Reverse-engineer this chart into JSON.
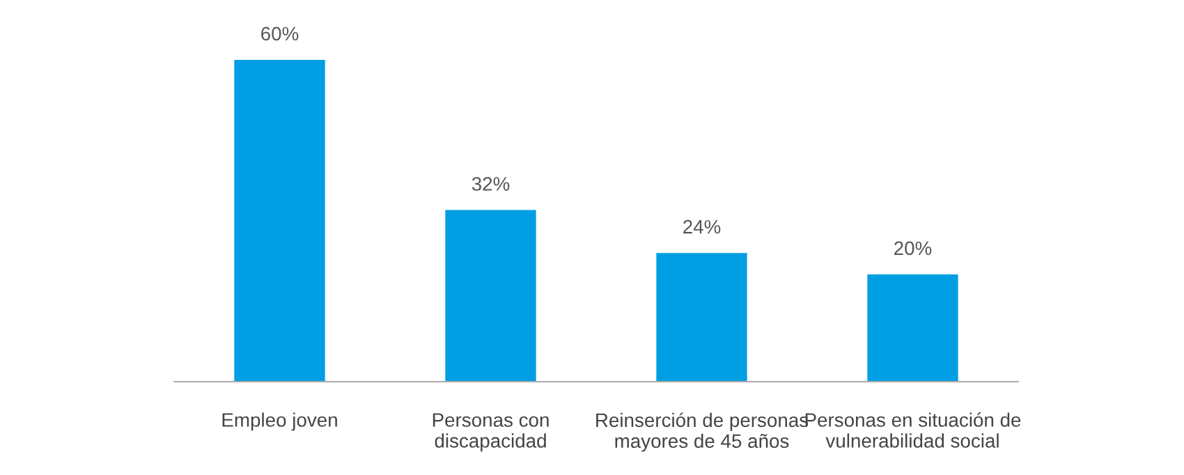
{
  "chart_data": {
    "type": "bar",
    "categories": [
      "Empleo joven",
      "Personas con\ndiscapacidad",
      "Reinserción de personas\nmayores de 45 años",
      "Personas en situación de\nvulnerabilidad social"
    ],
    "values": [
      60,
      32,
      24,
      20
    ],
    "color": "#009fe3",
    "value_labels": [
      "60%",
      "32%",
      "24%",
      "20%"
    ],
    "grid": false,
    "legend": false,
    "tick_labels": "x"
  }
}
